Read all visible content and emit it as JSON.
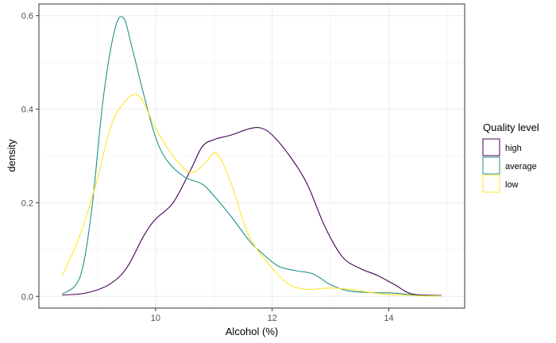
{
  "chart_data": {
    "type": "line",
    "xlabel": "Alcohol (%)",
    "ylabel": "density",
    "xlim": [
      8.0,
      15.3
    ],
    "ylim": [
      -0.025,
      0.625
    ],
    "x_ticks": [
      10,
      12,
      14
    ],
    "y_ticks": [
      0.0,
      0.2,
      0.4,
      0.6
    ],
    "x_tick_labels": [
      "10",
      "12",
      "14"
    ],
    "y_tick_labels": [
      "0.0",
      "0.2",
      "0.4",
      "0.6"
    ],
    "grid": true,
    "legend": {
      "title": "Quality level",
      "placement": "right"
    },
    "series": [
      {
        "name": "high",
        "color": "#440154",
        "x": [
          8.4,
          8.8,
          9.2,
          9.5,
          9.8,
          10.0,
          10.3,
          10.6,
          10.8,
          11.0,
          11.3,
          11.6,
          11.8,
          12.0,
          12.3,
          12.6,
          12.9,
          13.2,
          13.5,
          13.8,
          14.1,
          14.4,
          14.9
        ],
        "y": [
          0.003,
          0.007,
          0.025,
          0.06,
          0.13,
          0.165,
          0.2,
          0.27,
          0.32,
          0.335,
          0.345,
          0.358,
          0.36,
          0.345,
          0.3,
          0.24,
          0.15,
          0.085,
          0.06,
          0.045,
          0.025,
          0.005,
          0.002
        ]
      },
      {
        "name": "average",
        "color": "#21908C",
        "x": [
          8.4,
          8.7,
          8.9,
          9.1,
          9.3,
          9.45,
          9.6,
          9.8,
          10.0,
          10.2,
          10.5,
          10.8,
          11.0,
          11.3,
          11.6,
          11.8,
          12.1,
          12.4,
          12.7,
          13.0,
          13.3,
          13.7,
          14.1,
          14.5,
          14.9
        ],
        "y": [
          0.005,
          0.04,
          0.18,
          0.42,
          0.57,
          0.595,
          0.53,
          0.43,
          0.34,
          0.29,
          0.255,
          0.24,
          0.215,
          0.17,
          0.12,
          0.095,
          0.065,
          0.055,
          0.048,
          0.025,
          0.012,
          0.008,
          0.007,
          0.002,
          0.001
        ]
      },
      {
        "name": "low",
        "color": "#FDE725",
        "x": [
          8.4,
          8.7,
          9.0,
          9.2,
          9.4,
          9.7,
          10.0,
          10.3,
          10.6,
          10.85,
          11.05,
          11.3,
          11.6,
          12.0,
          12.3,
          12.6,
          13.0,
          13.4,
          13.8,
          14.2,
          14.6,
          14.9
        ],
        "y": [
          0.045,
          0.13,
          0.25,
          0.35,
          0.405,
          0.43,
          0.36,
          0.3,
          0.265,
          0.285,
          0.305,
          0.24,
          0.13,
          0.06,
          0.025,
          0.015,
          0.018,
          0.014,
          0.006,
          0.003,
          0.001,
          0.001
        ]
      }
    ]
  }
}
